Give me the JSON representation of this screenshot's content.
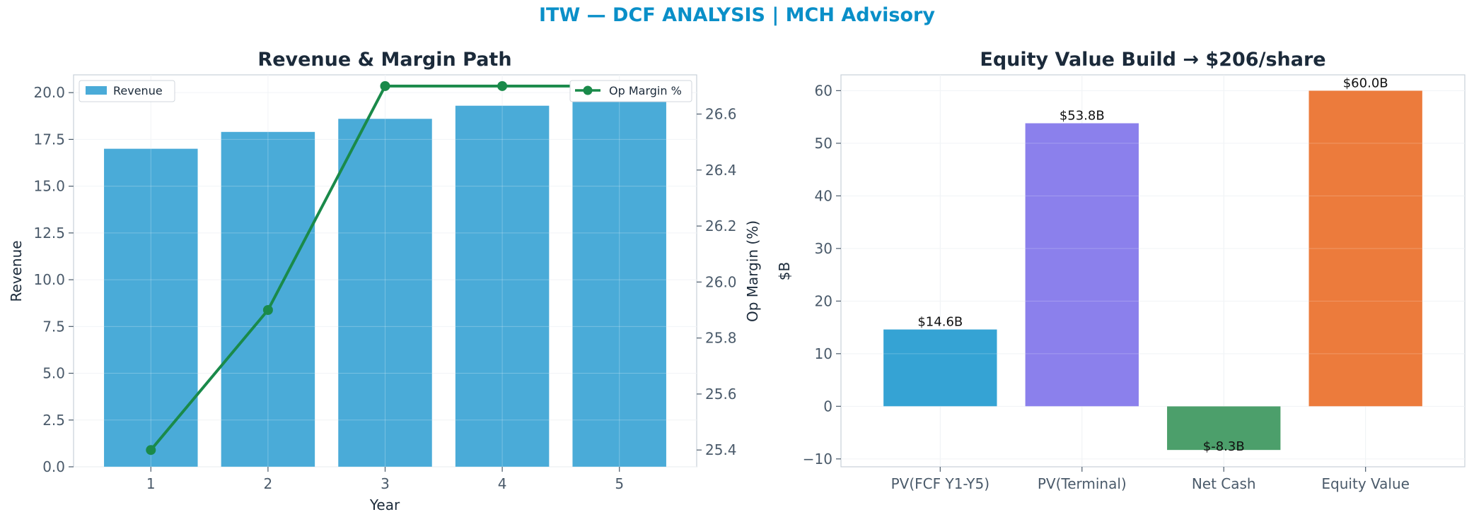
{
  "header": {
    "title": "ITW — DCF ANALYSIS | MCH Advisory"
  },
  "colors": {
    "title": "#0a8fc8",
    "heading": "#1b2a3a",
    "tick": "#4a5a6a",
    "axis_spine": "#c8d0d8",
    "grid": "#eef1f4",
    "revenue_bar": "#4aabd8",
    "margin_line": "#1a8a4a",
    "pv_fcf": "#35a3d4",
    "pv_terminal": "#8b80ec",
    "net_cash": "#4c9f6b",
    "equity_value": "#ec7b3c"
  },
  "chart_data": [
    {
      "type": "bar",
      "title": "Revenue & Margin Path",
      "xlabel": "Year",
      "ylabel": "Revenue",
      "y2label": "Op Margin (%)",
      "x": [
        1,
        2,
        3,
        4,
        5
      ],
      "series": [
        {
          "name": "Revenue",
          "type": "bar",
          "axis": "left",
          "values": [
            17.0,
            17.9,
            18.6,
            19.3,
            20.0
          ]
        },
        {
          "name": "Op Margin %",
          "type": "line",
          "axis": "right",
          "values": [
            25.4,
            25.9,
            26.7,
            26.7,
            26.7
          ]
        }
      ],
      "ylim": [
        0,
        20.95
      ],
      "y2lim": [
        25.34,
        26.74
      ],
      "yticks": [
        "0.0",
        "2.5",
        "5.0",
        "7.5",
        "10.0",
        "12.5",
        "15.0",
        "17.5",
        "20.0"
      ],
      "y2ticks": [
        "25.4",
        "25.6",
        "25.8",
        "26.0",
        "26.2",
        "26.4",
        "26.6"
      ],
      "grid": true,
      "legend": [
        "upper-left",
        "upper-right"
      ]
    },
    {
      "type": "bar",
      "title": "Equity Value Build → $206/share",
      "xlabel": "",
      "ylabel": "$B",
      "categories": [
        "PV(FCF Y1-Y5)",
        "PV(Terminal)",
        "Net Cash",
        "Equity Value"
      ],
      "values": [
        14.6,
        53.8,
        -8.3,
        60.0
      ],
      "data_labels": [
        "$14.6B",
        "$53.8B",
        "$-8.3B",
        "$60.0B"
      ],
      "ylim": [
        -11.5,
        63.0
      ],
      "yticks": [
        "−10",
        "0",
        "10",
        "20",
        "30",
        "40",
        "50",
        "60"
      ],
      "grid": true
    }
  ]
}
